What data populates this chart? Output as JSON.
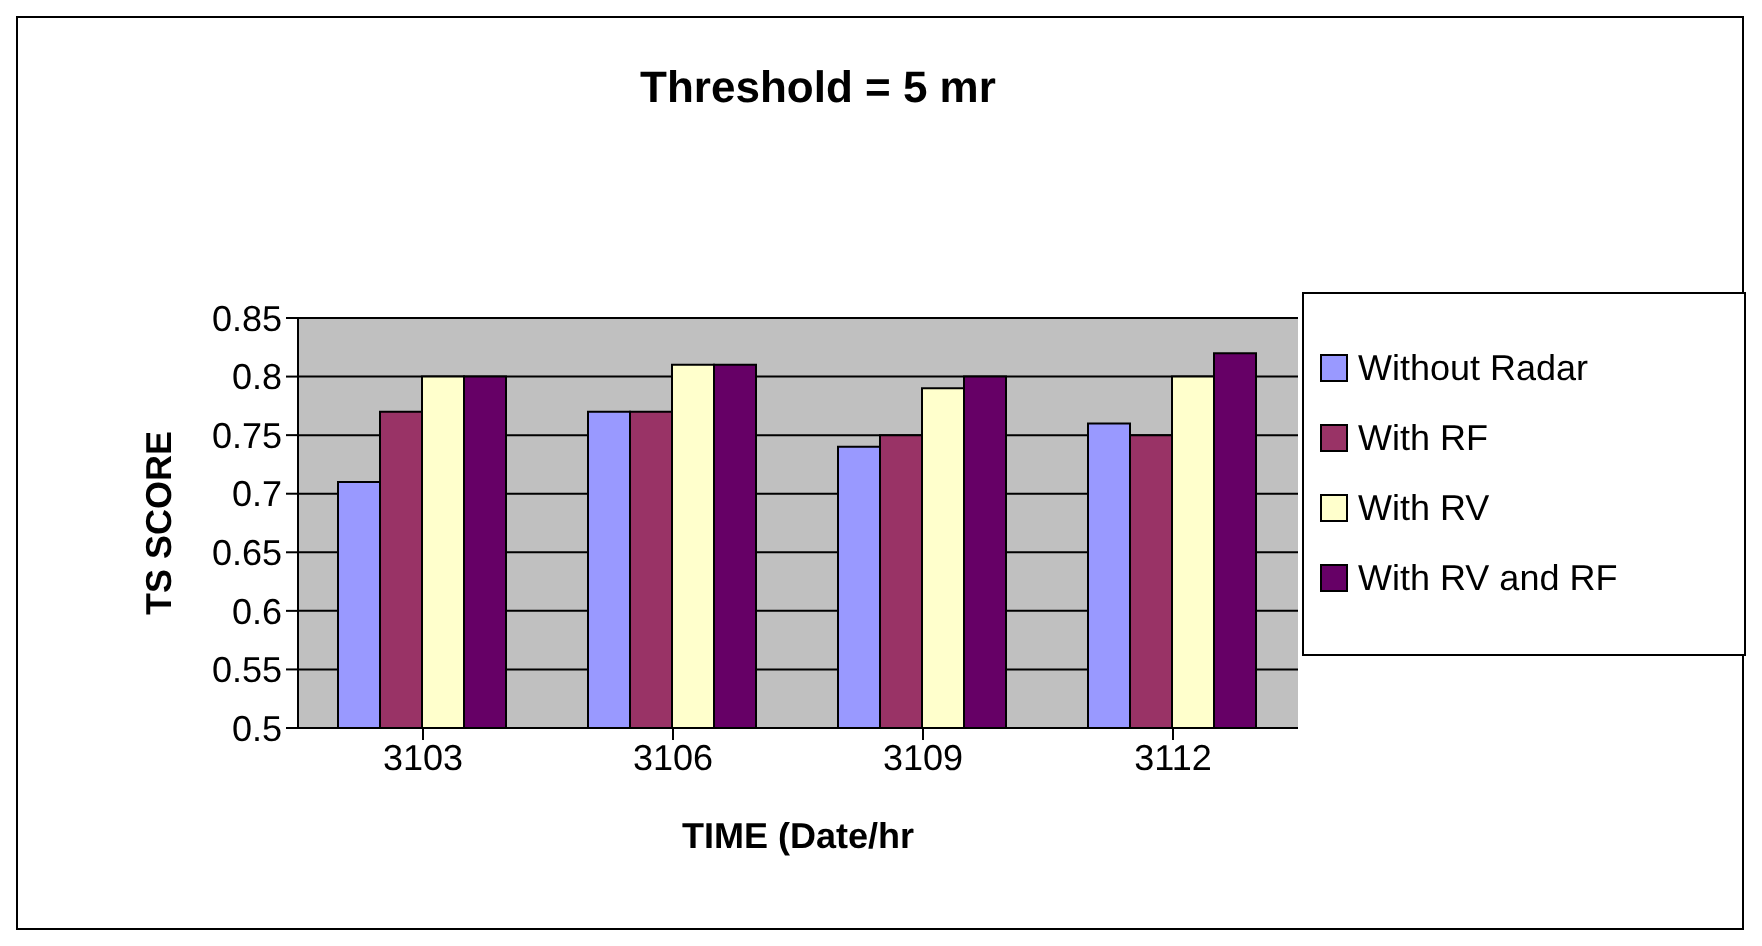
{
  "chart_data": {
    "type": "bar",
    "title": "Threshold = 5 mr",
    "xlabel": "TIME (Date/hr",
    "ylabel": "TS SCORE",
    "categories": [
      "3103",
      "3106",
      "3109",
      "3112"
    ],
    "series": [
      {
        "name": "Without Radar",
        "color": "#9999ff",
        "values": [
          0.71,
          0.77,
          0.74,
          0.76
        ]
      },
      {
        "name": "With RF",
        "color": "#993366",
        "values": [
          0.77,
          0.77,
          0.75,
          0.75
        ]
      },
      {
        "name": "With RV",
        "color": "#ffffcc",
        "values": [
          0.8,
          0.81,
          0.79,
          0.8
        ]
      },
      {
        "name": "With RV and RF",
        "color": "#660066",
        "values": [
          0.8,
          0.81,
          0.8,
          0.82
        ]
      }
    ],
    "ylim": [
      0.5,
      0.85
    ],
    "yticks": [
      0.5,
      0.55,
      0.6,
      0.65,
      0.7,
      0.75,
      0.8,
      0.85
    ],
    "grid": "y",
    "legend": "right"
  }
}
